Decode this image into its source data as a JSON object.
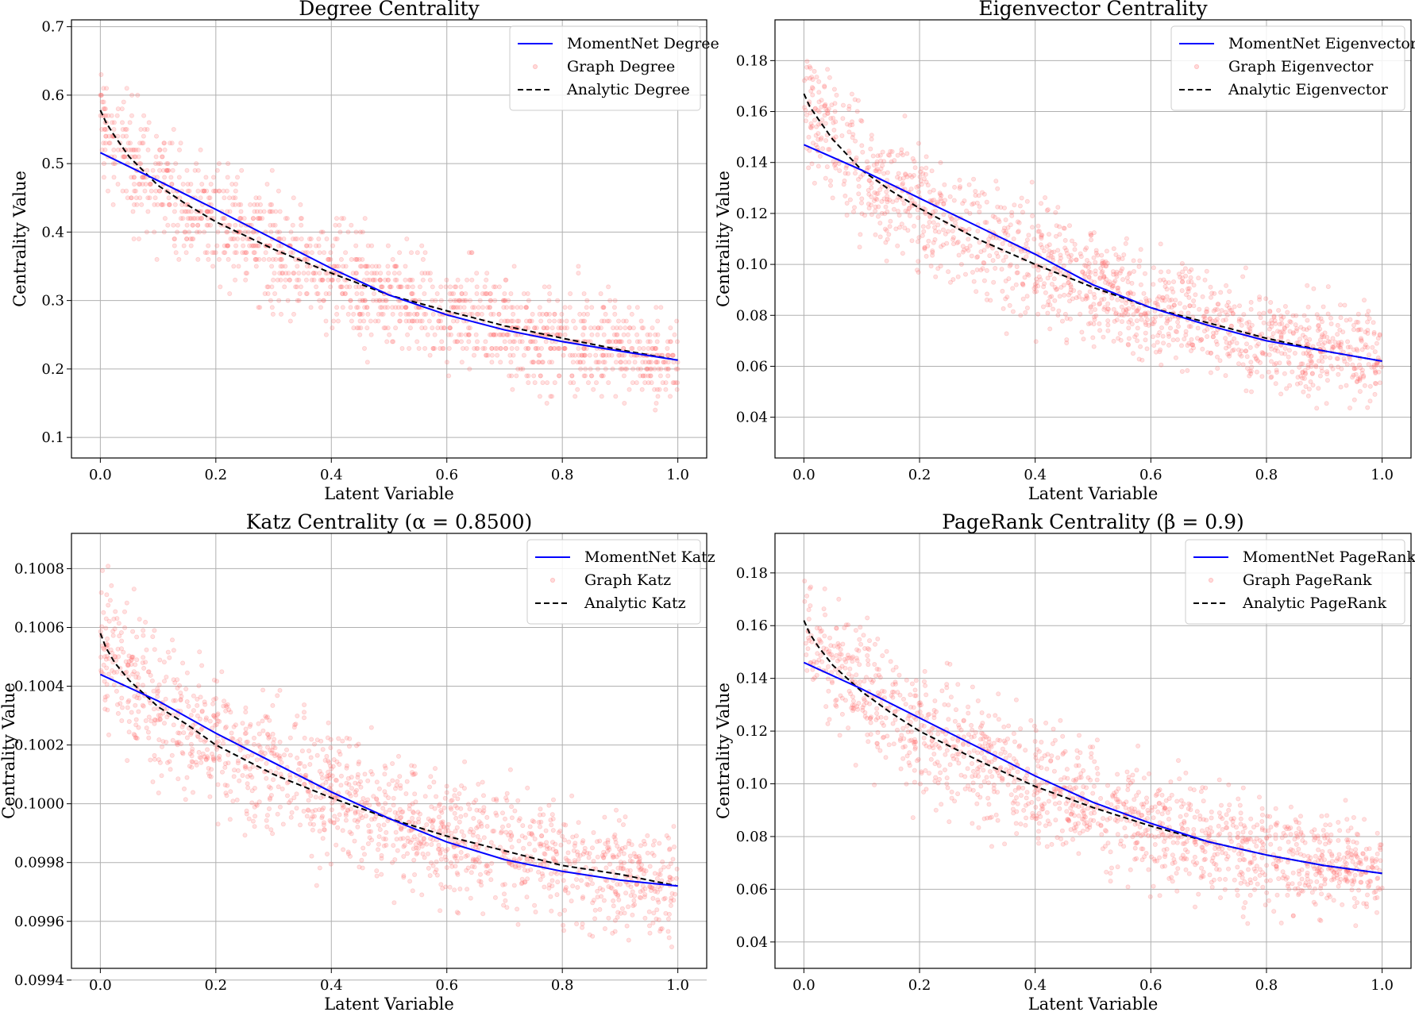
{
  "chart_data": [
    {
      "type": "scatter",
      "title": "Degree Centrality",
      "xlabel": "Latent Variable",
      "ylabel": "Centrality Value",
      "xlim": [
        -0.05,
        1.05
      ],
      "ylim": [
        0.07,
        0.71
      ],
      "xticks": [
        0.0,
        0.2,
        0.4,
        0.6,
        0.8,
        1.0
      ],
      "xtick_labels": [
        "0.0",
        "0.2",
        "0.4",
        "0.6",
        "0.8",
        "1.0"
      ],
      "yticks": [
        0.1,
        0.2,
        0.3,
        0.4,
        0.5,
        0.6,
        0.7
      ],
      "ytick_labels": [
        "0.1",
        "0.2",
        "0.3",
        "0.4",
        "0.5",
        "0.6",
        "0.7"
      ],
      "grid": true,
      "legend_position": "top-right",
      "legend": [
        "MomentNet Degree",
        "Graph Degree",
        "Analytic Degree"
      ],
      "series": [
        {
          "name": "MomentNet Degree",
          "kind": "line",
          "color": "#0000ff",
          "dash": "solid",
          "x": [
            0.0,
            0.1,
            0.2,
            0.3,
            0.4,
            0.5,
            0.6,
            0.7,
            0.8,
            0.9,
            1.0
          ],
          "y": [
            0.516,
            0.475,
            0.433,
            0.39,
            0.347,
            0.308,
            0.279,
            0.257,
            0.24,
            0.226,
            0.213
          ]
        },
        {
          "name": "Graph Degree",
          "kind": "scatter",
          "color": "#ff6b6b",
          "n_points": 1500,
          "noise_sd": 0.045,
          "quantize": 0.01,
          "follows": "Analytic Degree"
        },
        {
          "name": "Analytic Degree",
          "kind": "line",
          "color": "#000000",
          "dash": "dashed",
          "x": [
            0.0,
            0.01,
            0.025,
            0.05,
            0.1,
            0.15,
            0.2,
            0.3,
            0.4,
            0.5,
            0.6,
            0.7,
            0.8,
            0.9,
            1.0
          ],
          "y": [
            0.578,
            0.56,
            0.54,
            0.51,
            0.468,
            0.44,
            0.415,
            0.375,
            0.34,
            0.308,
            0.285,
            0.263,
            0.245,
            0.228,
            0.213
          ]
        }
      ]
    },
    {
      "type": "scatter",
      "title": "Eigenvector Centrality",
      "xlabel": "Latent Variable",
      "ylabel": "Centrality Value",
      "xlim": [
        -0.05,
        1.05
      ],
      "ylim": [
        0.024,
        0.196
      ],
      "xticks": [
        0.0,
        0.2,
        0.4,
        0.6,
        0.8,
        1.0
      ],
      "xtick_labels": [
        "0.0",
        "0.2",
        "0.4",
        "0.6",
        "0.8",
        "1.0"
      ],
      "yticks": [
        0.04,
        0.06,
        0.08,
        0.1,
        0.12,
        0.14,
        0.16,
        0.18
      ],
      "ytick_labels": [
        "0.04",
        "0.06",
        "0.08",
        "0.10",
        "0.12",
        "0.14",
        "0.16",
        "0.18"
      ],
      "grid": true,
      "legend_position": "top-right",
      "legend": [
        "MomentNet Eigenvector",
        "Graph Eigenvector",
        "Analytic Eigenvector"
      ],
      "series": [
        {
          "name": "MomentNet Eigenvector",
          "kind": "line",
          "color": "#0000ff",
          "dash": "solid",
          "x": [
            0.0,
            0.1,
            0.2,
            0.3,
            0.4,
            0.5,
            0.6,
            0.7,
            0.8,
            0.9,
            1.0
          ],
          "y": [
            0.147,
            0.137,
            0.126,
            0.115,
            0.104,
            0.092,
            0.083,
            0.076,
            0.07,
            0.066,
            0.062
          ]
        },
        {
          "name": "Graph Eigenvector",
          "kind": "scatter",
          "color": "#ff6b6b",
          "n_points": 1500,
          "noise_sd": 0.012,
          "quantize": 0,
          "follows": "Analytic Eigenvector"
        },
        {
          "name": "Analytic Eigenvector",
          "kind": "line",
          "color": "#000000",
          "dash": "dashed",
          "x": [
            0.0,
            0.01,
            0.025,
            0.05,
            0.1,
            0.15,
            0.2,
            0.3,
            0.4,
            0.5,
            0.6,
            0.7,
            0.8,
            0.9,
            1.0
          ],
          "y": [
            0.167,
            0.162,
            0.157,
            0.149,
            0.137,
            0.129,
            0.122,
            0.11,
            0.1,
            0.091,
            0.083,
            0.077,
            0.071,
            0.066,
            0.062
          ]
        }
      ]
    },
    {
      "type": "scatter",
      "title": "Katz Centrality (α = 0.8500)",
      "xlabel": "Latent Variable",
      "ylabel": "Centrality Value",
      "xlim": [
        -0.05,
        1.05
      ],
      "ylim": [
        0.09944,
        0.10092
      ],
      "xticks": [
        0.0,
        0.2,
        0.4,
        0.6,
        0.8,
        1.0
      ],
      "xtick_labels": [
        "0.0",
        "0.2",
        "0.4",
        "0.6",
        "0.8",
        "1.0"
      ],
      "yticks": [
        0.0994,
        0.0996,
        0.0998,
        0.1,
        0.1002,
        0.1004,
        0.1006,
        0.1008
      ],
      "ytick_labels": [
        "0.0994",
        "0.0996",
        "0.0998",
        "0.1000",
        "0.1002",
        "0.1004",
        "0.1006",
        "0.1008"
      ],
      "grid": true,
      "legend_position": "top-right",
      "legend": [
        "MomentNet Katz",
        "Graph Katz",
        "Analytic Katz"
      ],
      "series": [
        {
          "name": "MomentNet Katz",
          "kind": "line",
          "color": "#0000ff",
          "dash": "solid",
          "x": [
            0.0,
            0.1,
            0.2,
            0.3,
            0.4,
            0.5,
            0.6,
            0.7,
            0.8,
            0.9,
            1.0
          ],
          "y": [
            0.10044,
            0.10035,
            0.10024,
            0.10014,
            0.10004,
            0.09995,
            0.09987,
            0.09981,
            0.09977,
            0.09974,
            0.09972
          ]
        },
        {
          "name": "Graph Katz",
          "kind": "scatter",
          "color": "#ff6b6b",
          "n_points": 1500,
          "noise_sd": 0.00012,
          "quantize": 0,
          "follows": "Analytic Katz"
        },
        {
          "name": "Analytic Katz",
          "kind": "line",
          "color": "#000000",
          "dash": "dashed",
          "x": [
            0.0,
            0.01,
            0.025,
            0.05,
            0.1,
            0.15,
            0.2,
            0.3,
            0.4,
            0.5,
            0.6,
            0.7,
            0.8,
            0.9,
            1.0
          ],
          "y": [
            0.10058,
            0.10053,
            0.10048,
            0.10042,
            0.10033,
            0.10027,
            0.1002,
            0.1001,
            0.10002,
            0.09995,
            0.09989,
            0.09984,
            0.09979,
            0.09976,
            0.09972
          ]
        }
      ]
    },
    {
      "type": "scatter",
      "title": "PageRank Centrality (β = 0.9)",
      "xlabel": "Latent Variable",
      "ylabel": "Centrality Value",
      "xlim": [
        -0.05,
        1.05
      ],
      "ylim": [
        0.03,
        0.195
      ],
      "xticks": [
        0.0,
        0.2,
        0.4,
        0.6,
        0.8,
        1.0
      ],
      "xtick_labels": [
        "0.0",
        "0.2",
        "0.4",
        "0.6",
        "0.8",
        "1.0"
      ],
      "yticks": [
        0.04,
        0.06,
        0.08,
        0.1,
        0.12,
        0.14,
        0.16,
        0.18
      ],
      "ytick_labels": [
        "0.04",
        "0.06",
        "0.08",
        "0.10",
        "0.12",
        "0.14",
        "0.16",
        "0.18"
      ],
      "grid": true,
      "legend_position": "top-right",
      "legend": [
        "MomentNet PageRank",
        "Graph PageRank",
        "Analytic PageRank"
      ],
      "series": [
        {
          "name": "MomentNet PageRank",
          "kind": "line",
          "color": "#0000ff",
          "dash": "solid",
          "x": [
            0.0,
            0.1,
            0.2,
            0.3,
            0.4,
            0.5,
            0.6,
            0.7,
            0.8,
            0.9,
            1.0
          ],
          "y": [
            0.146,
            0.136,
            0.125,
            0.114,
            0.103,
            0.093,
            0.085,
            0.078,
            0.073,
            0.069,
            0.066
          ]
        },
        {
          "name": "Graph PageRank",
          "kind": "scatter",
          "color": "#ff6b6b",
          "n_points": 1500,
          "noise_sd": 0.012,
          "quantize": 0,
          "follows": "Analytic PageRank"
        },
        {
          "name": "Analytic PageRank",
          "kind": "line",
          "color": "#000000",
          "dash": "dashed",
          "x": [
            0.0,
            0.01,
            0.025,
            0.05,
            0.1,
            0.15,
            0.2,
            0.3,
            0.4,
            0.5,
            0.6,
            0.7,
            0.8,
            0.9,
            1.0
          ],
          "y": [
            0.162,
            0.157,
            0.152,
            0.145,
            0.135,
            0.127,
            0.12,
            0.109,
            0.099,
            0.091,
            0.084,
            0.078,
            0.073,
            0.069,
            0.066
          ]
        }
      ]
    }
  ]
}
